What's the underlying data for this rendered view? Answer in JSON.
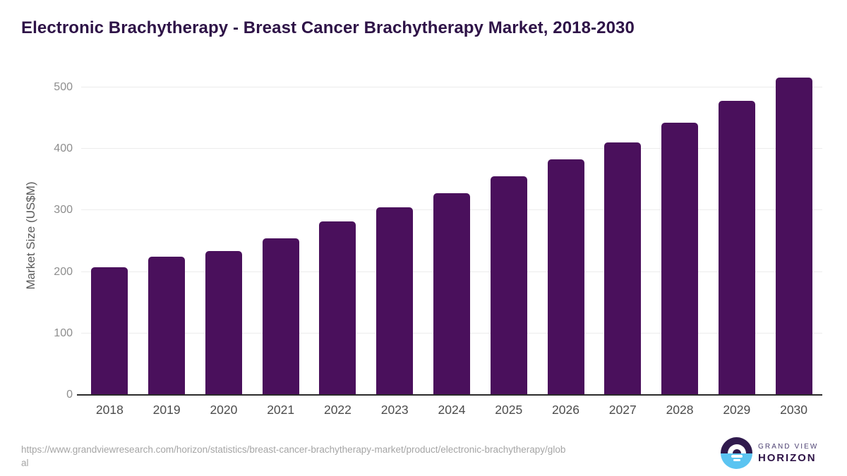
{
  "title": "Electronic Brachytherapy - Breast Cancer Brachytherapy Market, 2018-2030",
  "chart_data": {
    "type": "bar",
    "title": "Electronic Brachytherapy - Breast Cancer Brachytherapy Market, 2018-2030",
    "categories": [
      "2018",
      "2019",
      "2020",
      "2021",
      "2022",
      "2023",
      "2024",
      "2025",
      "2026",
      "2027",
      "2028",
      "2029",
      "2030"
    ],
    "values": [
      208,
      225,
      234,
      255,
      282,
      305,
      328,
      355,
      383,
      411,
      443,
      478,
      516
    ],
    "xlabel": "",
    "ylabel": "Market Size (US$M)",
    "ylim": [
      0,
      520
    ],
    "yticks": [
      0,
      100,
      200,
      300,
      400,
      500
    ],
    "grid": "horizontal",
    "legend": "none",
    "bar_color": "#4a105c"
  },
  "footer": {
    "url_lines": [
      "https://www.grandviewresearch.com/horizon/statistics/breast-cancer-brachytherapy-market/product/electronic-brachytherapy/glob",
      "al"
    ]
  },
  "logo": {
    "line1": "GRAND VIEW",
    "line2": "HORIZON",
    "colors": {
      "dark": "#301a4d",
      "blue": "#5bc4f1"
    }
  }
}
